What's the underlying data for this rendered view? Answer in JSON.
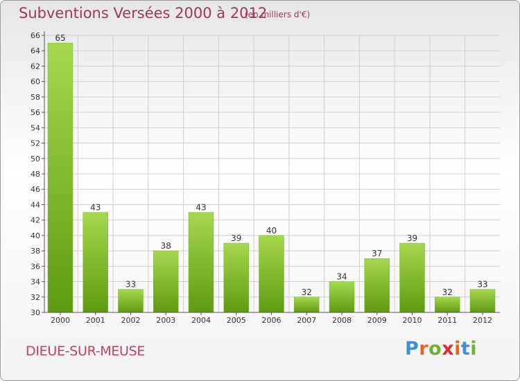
{
  "header": {
    "title": "Subventions Versées 2000 à 2012",
    "subtitle": "(en milliers d'€)"
  },
  "footer": {
    "commune": "DIEUE-SUR-MEUSE",
    "logo": "Proxiti"
  },
  "colors": {
    "title": "#a3375a",
    "bar_light": "#a6d84e",
    "bar_dark": "#5f9a12",
    "grid": "#cfcfcf"
  },
  "chart_data": {
    "type": "bar",
    "title": "Subventions Versées 2000 à 2012",
    "subtitle": "(en milliers d'€)",
    "categories": [
      "2000",
      "2001",
      "2002",
      "2003",
      "2004",
      "2005",
      "2006",
      "2007",
      "2008",
      "2009",
      "2010",
      "2011",
      "2012"
    ],
    "values": [
      65,
      43,
      33,
      38,
      43,
      39,
      40,
      32,
      34,
      37,
      39,
      32,
      33
    ],
    "ylim": [
      30,
      66
    ],
    "yticks": [
      30,
      32,
      34,
      36,
      38,
      40,
      42,
      44,
      46,
      48,
      50,
      52,
      54,
      56,
      58,
      60,
      62,
      64,
      66
    ],
    "grid": true,
    "data_labels": true
  }
}
